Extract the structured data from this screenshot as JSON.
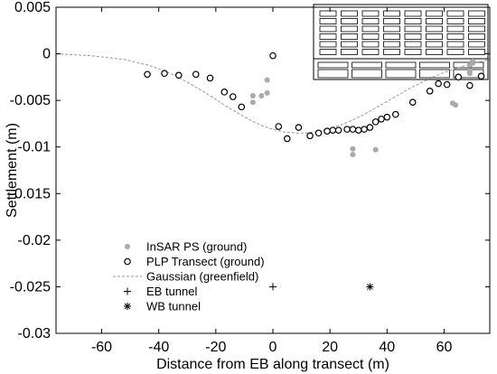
{
  "chart_data": {
    "type": "scatter",
    "xlabel": "Distance from EB along transect (m)",
    "ylabel": "Settlement (m)",
    "xlim": [
      -76,
      76
    ],
    "ylim": [
      -0.03,
      0.005
    ],
    "xticks": [
      -60,
      -40,
      -20,
      0,
      20,
      40,
      60
    ],
    "yticks": [
      0.005,
      0,
      -0.005,
      -0.01,
      -0.015,
      -0.02,
      -0.025,
      -0.03
    ],
    "xtick_labels": [
      "-60",
      "-40",
      "-20",
      "0",
      "20",
      "40",
      "60"
    ],
    "ytick_labels": [
      "0.005",
      "0",
      "-0.005",
      "-0.01",
      "-0.015",
      "-0.02",
      "-0.025",
      "-0.03"
    ],
    "grid": false,
    "legend_position": "bottom-left",
    "series": [
      {
        "name": "InSAR PS (ground)",
        "marker": "filled-circle",
        "color": "#aaaaaa",
        "x": [
          -7,
          -7,
          -4,
          -2,
          -2,
          28,
          28,
          36,
          63,
          64,
          69,
          69,
          69,
          70,
          70
        ],
        "y": [
          -0.0045,
          -0.0052,
          -0.0045,
          -0.0042,
          -0.0028,
          -0.0102,
          -0.0108,
          -0.0103,
          -0.0053,
          -0.0055,
          -0.0012,
          -0.0018,
          -0.0021,
          -0.0008,
          -0.001
        ]
      },
      {
        "name": "PLP Transect (ground)",
        "marker": "open-circle",
        "color": "#000000",
        "x": [
          -44,
          -38,
          -33,
          -27,
          -22,
          -17,
          -14,
          -11,
          0,
          2,
          5,
          9,
          13,
          16,
          19,
          21,
          23,
          26,
          28,
          30,
          32,
          34,
          36,
          38,
          40,
          43,
          49,
          55,
          58,
          61,
          65,
          69,
          73
        ],
        "y": [
          -0.0022,
          -0.0021,
          -0.0023,
          -0.0022,
          -0.0026,
          -0.0041,
          -0.0046,
          -0.0057,
          -0.0002,
          -0.0078,
          -0.0091,
          -0.0079,
          -0.0088,
          -0.0085,
          -0.0083,
          -0.0082,
          -0.0082,
          -0.0081,
          -0.0081,
          -0.0082,
          -0.0081,
          -0.0079,
          -0.0073,
          -0.007,
          -0.0068,
          -0.0065,
          -0.0052,
          -0.004,
          -0.0032,
          -0.0033,
          -0.0025,
          -0.0034,
          -0.0024
        ]
      },
      {
        "name": "Gaussian (greenfield)",
        "type": "line",
        "style": "dashed",
        "color": "#999999",
        "x": [
          -76,
          -70,
          -64,
          -58,
          -52,
          -48,
          -44,
          -40,
          -36,
          -32,
          -28,
          -24,
          -20,
          -16,
          -12,
          -8,
          -4,
          0,
          4,
          8,
          12,
          16,
          20,
          24,
          28,
          32,
          36,
          40,
          44,
          48,
          52,
          56,
          60,
          64,
          68,
          72,
          76
        ],
        "y": [
          0,
          -0.0001,
          -0.0002,
          -0.0004,
          -0.0006,
          -0.0009,
          -0.0012,
          -0.0016,
          -0.0021,
          -0.0027,
          -0.0034,
          -0.0041,
          -0.0049,
          -0.0057,
          -0.0064,
          -0.0071,
          -0.0077,
          -0.0081,
          -0.0084,
          -0.0085,
          -0.0085,
          -0.0083,
          -0.008,
          -0.0076,
          -0.0071,
          -0.0065,
          -0.0058,
          -0.0051,
          -0.0044,
          -0.0037,
          -0.0031,
          -0.0025,
          -0.002,
          -0.0016,
          -0.0012,
          -0.0009,
          -0.0006
        ]
      },
      {
        "name": "EB tunnel",
        "marker": "plus",
        "color": "#000000",
        "x": [
          0
        ],
        "y": [
          -0.025
        ]
      },
      {
        "name": "WB tunnel",
        "marker": "asterisk",
        "color": "#000000",
        "x": [
          34
        ],
        "y": [
          -0.025
        ]
      }
    ]
  }
}
